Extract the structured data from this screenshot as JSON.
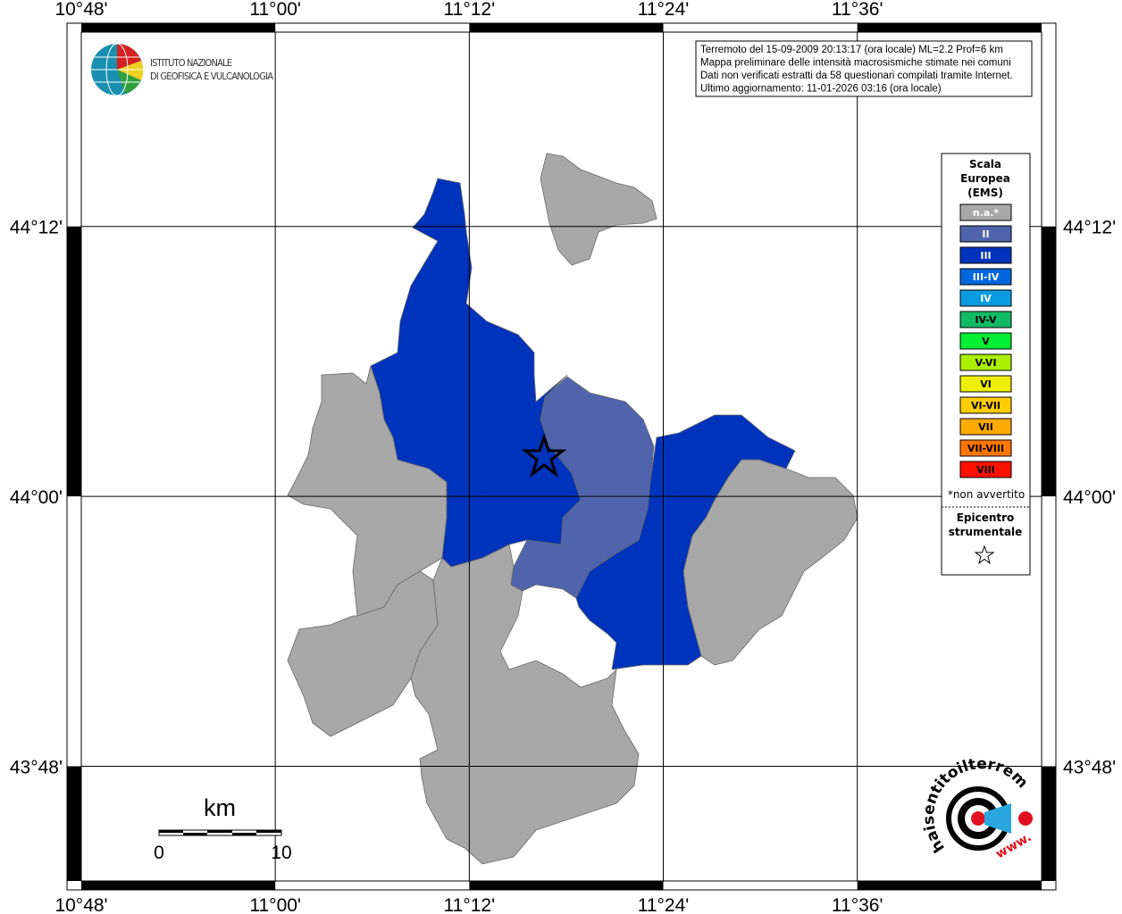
{
  "header": {
    "institute": [
      "ISTITUTO NAZIONALE",
      "DI GEOFISICA E VULCANOLOGIA"
    ],
    "info": [
      "Terremoto del 15-09-2009 20:13:17 (ora locale) ML=2.2 Prof=6 km",
      "Mappa preliminare delle intensità macrosismiche stimate nei comuni",
      "Dati non verificati estratti da 58 questionari compilati tramite Internet.",
      "Ultimo aggiornamento: 11-01-2026 03:16 (ora locale)"
    ]
  },
  "map": {
    "xlim": [
      10.8,
      11.79
    ],
    "ylim": [
      43.715,
      44.344
    ],
    "xticks": [
      {
        "value": 10.8,
        "label": "10°48'"
      },
      {
        "value": 11.0,
        "label": "11°00'"
      },
      {
        "value": 11.2,
        "label": "11°12'"
      },
      {
        "value": 11.4,
        "label": "11°24'"
      },
      {
        "value": 11.6,
        "label": "11°36'"
      }
    ],
    "yticks": [
      {
        "value": 44.2,
        "label": "44°12'"
      },
      {
        "value": 44.0,
        "label": "44°00'"
      },
      {
        "value": 43.8,
        "label": "43°48'"
      }
    ]
  },
  "legend": {
    "title": [
      "Scala",
      "Europea",
      "(EMS)"
    ],
    "items": [
      {
        "label": "n.a.*",
        "color": "#a8a8a8",
        "text": "#ffffff"
      },
      {
        "label": "II",
        "color": "#4f64ac",
        "text": "#ffffff"
      },
      {
        "label": "III",
        "color": "#0033bb",
        "text": "#ffffff"
      },
      {
        "label": "III-IV",
        "color": "#0066dd",
        "text": "#ffffff"
      },
      {
        "label": "IV",
        "color": "#0a9be0",
        "text": "#ffffff"
      },
      {
        "label": "IV-V",
        "color": "#11bb66",
        "text": "#000000"
      },
      {
        "label": "V",
        "color": "#00ee33",
        "text": "#000000"
      },
      {
        "label": "V-VI",
        "color": "#aaee00",
        "text": "#000000"
      },
      {
        "label": "VI",
        "color": "#eeee00",
        "text": "#000000"
      },
      {
        "label": "VI-VII",
        "color": "#ffcc00",
        "text": "#000000"
      },
      {
        "label": "VII",
        "color": "#ffaa00",
        "text": "#000000"
      },
      {
        "label": "VII-VIII",
        "color": "#ff7700",
        "text": "#000000"
      },
      {
        "label": "VIII",
        "color": "#ff1100",
        "text": "#000000"
      }
    ],
    "note": "*non avvertito",
    "epicenter": [
      "Epicentro",
      "strumentale"
    ]
  },
  "scale_bar": {
    "unit": "km",
    "labels": [
      "0",
      "10"
    ]
  },
  "site_logo": {
    "text": "haisentitoilterremoto.it",
    "www": "www."
  }
}
